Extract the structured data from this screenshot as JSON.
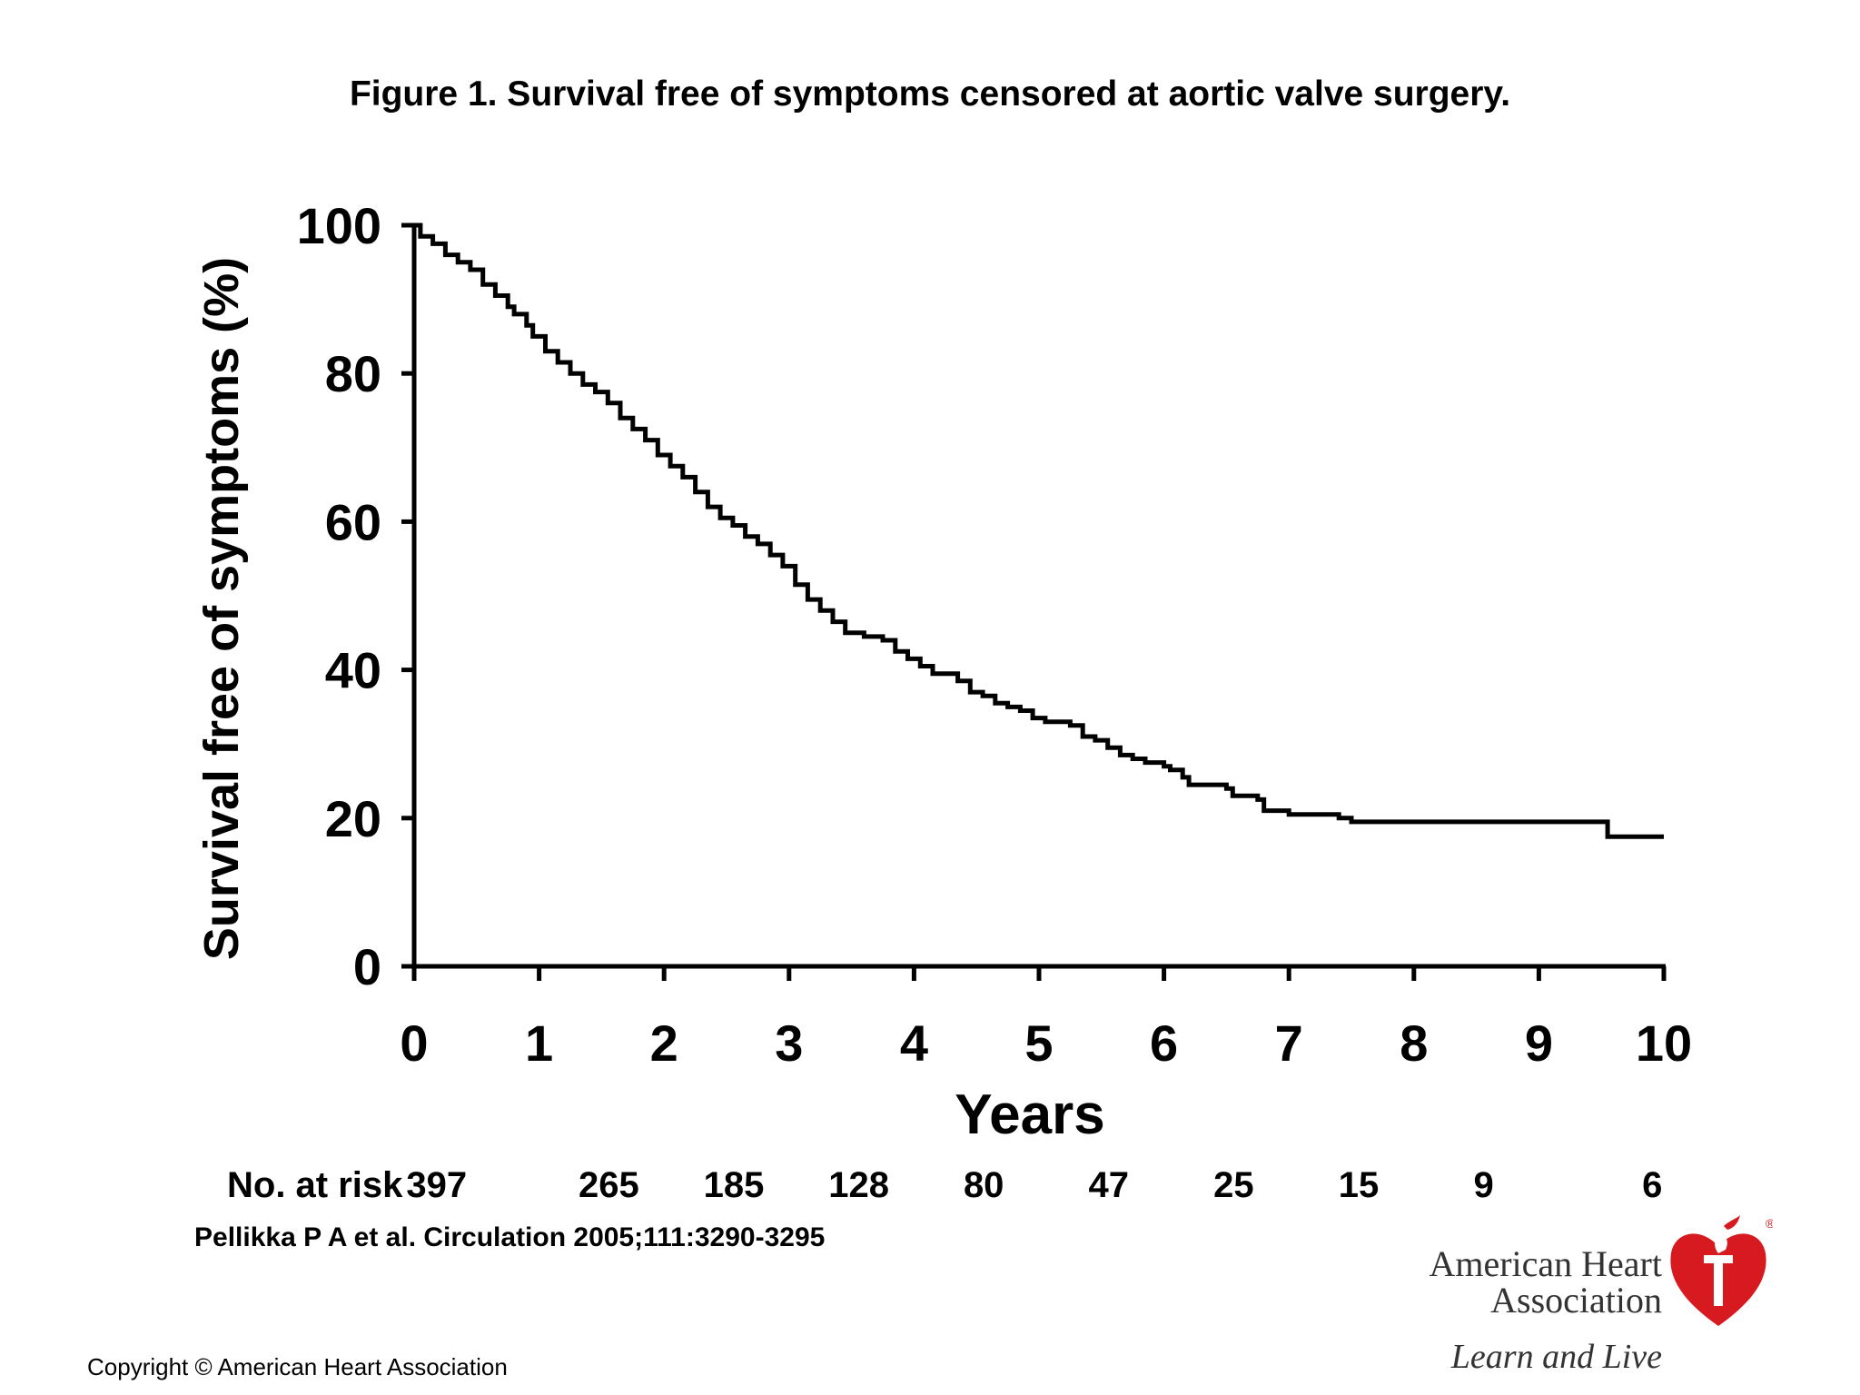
{
  "slide": {
    "title": "Figure 1. Survival free of symptoms censored at aortic valve surgery.",
    "citation": "Pellikka P A et al. Circulation 2005;111:3290-3295",
    "copyright": "Copyright © American Heart Association"
  },
  "logo": {
    "line1": "American Heart",
    "line2": "Association",
    "tagline": "Learn and Live",
    "icon": "heart-torch-icon",
    "registered_mark": "®",
    "color": "#d71920"
  },
  "chart_data": {
    "type": "line",
    "style": "step",
    "title": "",
    "xlabel": "Years",
    "ylabel": "Survival free of symptoms (%)",
    "xlim": [
      0,
      10
    ],
    "ylim": [
      0,
      100
    ],
    "x_ticks": [
      "0",
      "1",
      "2",
      "3",
      "4",
      "5",
      "6",
      "7",
      "8",
      "9",
      "10"
    ],
    "y_ticks": [
      "0",
      "20",
      "40",
      "60",
      "80",
      "100"
    ],
    "grid": false,
    "legend": "none",
    "series": [
      {
        "name": "",
        "color": "#000000",
        "points": [
          [
            0,
            100
          ],
          [
            0.05,
            98.5
          ],
          [
            0.15,
            97.5
          ],
          [
            0.25,
            96
          ],
          [
            0.35,
            95
          ],
          [
            0.45,
            94
          ],
          [
            0.55,
            92
          ],
          [
            0.65,
            90.5
          ],
          [
            0.75,
            89
          ],
          [
            0.8,
            88
          ],
          [
            0.9,
            86.5
          ],
          [
            0.95,
            85
          ],
          [
            1.05,
            83
          ],
          [
            1.15,
            81.5
          ],
          [
            1.25,
            80
          ],
          [
            1.35,
            78.5
          ],
          [
            1.45,
            77.5
          ],
          [
            1.55,
            76
          ],
          [
            1.65,
            74
          ],
          [
            1.75,
            72.5
          ],
          [
            1.85,
            71
          ],
          [
            1.95,
            69
          ],
          [
            2.05,
            67.5
          ],
          [
            2.15,
            66
          ],
          [
            2.25,
            64
          ],
          [
            2.35,
            62
          ],
          [
            2.45,
            60.5
          ],
          [
            2.55,
            59.5
          ],
          [
            2.65,
            58
          ],
          [
            2.75,
            57
          ],
          [
            2.85,
            55.5
          ],
          [
            2.95,
            54
          ],
          [
            3.05,
            51.5
          ],
          [
            3.15,
            49.5
          ],
          [
            3.25,
            48
          ],
          [
            3.35,
            46.5
          ],
          [
            3.45,
            45
          ],
          [
            3.6,
            44.5
          ],
          [
            3.75,
            44
          ],
          [
            3.85,
            42.5
          ],
          [
            3.95,
            41.5
          ],
          [
            4.05,
            40.5
          ],
          [
            4.15,
            39.5
          ],
          [
            4.35,
            38.5
          ],
          [
            4.45,
            37
          ],
          [
            4.55,
            36.5
          ],
          [
            4.65,
            35.5
          ],
          [
            4.75,
            35
          ],
          [
            4.85,
            34.5
          ],
          [
            4.95,
            33.5
          ],
          [
            5.05,
            33
          ],
          [
            5.25,
            32.5
          ],
          [
            5.35,
            31
          ],
          [
            5.45,
            30.5
          ],
          [
            5.55,
            29.5
          ],
          [
            5.65,
            28.5
          ],
          [
            5.75,
            28
          ],
          [
            5.85,
            27.5
          ],
          [
            6.0,
            27
          ],
          [
            6.05,
            26.5
          ],
          [
            6.15,
            25.5
          ],
          [
            6.2,
            24.5
          ],
          [
            6.5,
            24
          ],
          [
            6.55,
            23
          ],
          [
            6.75,
            22.5
          ],
          [
            6.8,
            21
          ],
          [
            7.0,
            20.5
          ],
          [
            7.4,
            20
          ],
          [
            7.5,
            19.5
          ],
          [
            9.5,
            19.5
          ],
          [
            9.55,
            17.5
          ],
          [
            10.0,
            17.5
          ]
        ]
      }
    ],
    "at_risk": {
      "label": "No. at risk",
      "values": [
        "397",
        "265",
        "185",
        "128",
        "80",
        "47",
        "25",
        "15",
        "9",
        "6"
      ]
    }
  }
}
